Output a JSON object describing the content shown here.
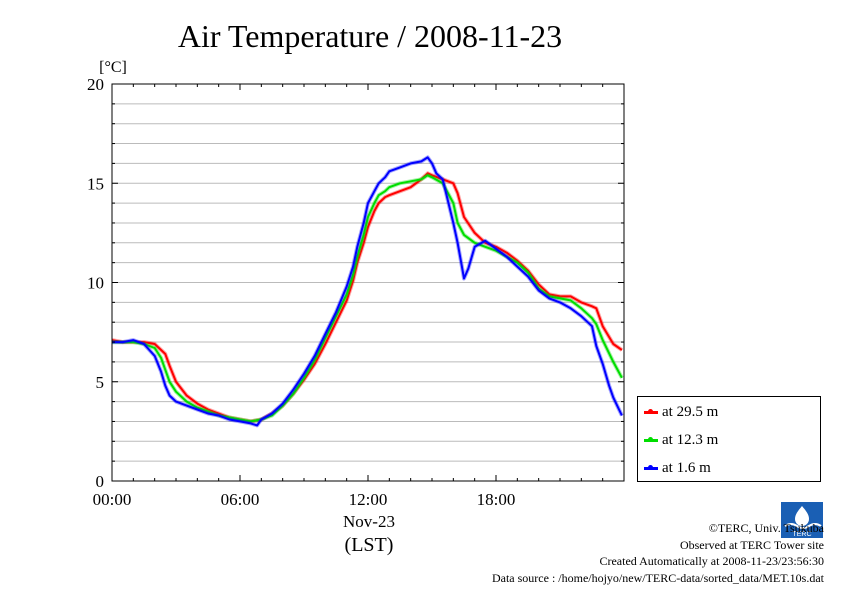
{
  "chart_data": {
    "type": "line",
    "title": "Air Temperature / 2008-11-23",
    "ylabel": "[°C]",
    "xlabel": "(LST)",
    "date_label": "Nov-23",
    "xlim": [
      0,
      24
    ],
    "ylim": [
      0,
      20
    ],
    "x_ticks": [
      {
        "value": 0,
        "label": "00:00"
      },
      {
        "value": 6,
        "label": "06:00"
      },
      {
        "value": 12,
        "label": "12:00"
      },
      {
        "value": 18,
        "label": "18:00"
      }
    ],
    "y_ticks": [
      {
        "value": 0,
        "label": "0"
      },
      {
        "value": 5,
        "label": "5"
      },
      {
        "value": 10,
        "label": "10"
      },
      {
        "value": 15,
        "label": "15"
      },
      {
        "value": 20,
        "label": "20"
      }
    ],
    "grid": true,
    "legend_position": "bottom-right-outside",
    "series": [
      {
        "name": "at 29.5 m",
        "color": "#ff0000",
        "x": [
          0,
          0.5,
          1,
          1.5,
          2,
          2.3,
          2.5,
          2.7,
          3,
          3.5,
          4,
          4.5,
          5,
          5.5,
          6,
          6.5,
          7,
          7.5,
          8,
          8.5,
          9,
          9.5,
          10,
          10.5,
          11,
          11.3,
          11.5,
          11.8,
          12,
          12.3,
          12.5,
          12.8,
          13,
          13.5,
          14,
          14.5,
          14.8,
          15,
          15.5,
          16,
          16.2,
          16.5,
          17,
          17.5,
          18,
          18.5,
          19,
          19.5,
          20,
          20.5,
          21,
          21.5,
          22,
          22.5,
          22.7,
          23,
          23.5,
          23.9
        ],
        "y": [
          7.1,
          7.0,
          7.0,
          7.0,
          6.9,
          6.6,
          6.4,
          5.8,
          5.0,
          4.3,
          3.9,
          3.6,
          3.4,
          3.2,
          3.1,
          3.0,
          3.1,
          3.4,
          3.8,
          4.4,
          5.1,
          5.9,
          6.9,
          8.0,
          9.1,
          10.1,
          11.0,
          12.0,
          12.8,
          13.6,
          14.0,
          14.3,
          14.4,
          14.6,
          14.8,
          15.2,
          15.5,
          15.4,
          15.2,
          15.0,
          14.5,
          13.3,
          12.5,
          12.0,
          11.8,
          11.5,
          11.1,
          10.6,
          9.9,
          9.4,
          9.3,
          9.3,
          9.0,
          8.8,
          8.7,
          7.8,
          6.9,
          6.6
        ]
      },
      {
        "name": "at 12.3 m",
        "color": "#00dd00",
        "x": [
          0,
          0.5,
          1,
          1.5,
          2,
          2.3,
          2.5,
          2.7,
          3,
          3.5,
          4,
          4.5,
          5,
          5.5,
          6,
          6.5,
          7,
          7.5,
          8,
          8.5,
          9,
          9.5,
          10,
          10.5,
          11,
          11.3,
          11.5,
          11.8,
          12,
          12.3,
          12.5,
          12.8,
          13,
          13.5,
          14,
          14.5,
          14.8,
          15,
          15.5,
          16,
          16.2,
          16.5,
          17,
          17.5,
          18,
          18.5,
          19,
          19.5,
          20,
          20.5,
          21,
          21.5,
          22,
          22.5,
          22.7,
          23,
          23.5,
          23.9
        ],
        "y": [
          7.0,
          7.0,
          7.0,
          6.9,
          6.7,
          6.2,
          5.6,
          5.0,
          4.5,
          4.0,
          3.7,
          3.5,
          3.3,
          3.2,
          3.1,
          3.0,
          3.1,
          3.3,
          3.8,
          4.4,
          5.2,
          6.1,
          7.2,
          8.3,
          9.4,
          10.4,
          11.3,
          12.4,
          13.3,
          14.0,
          14.4,
          14.6,
          14.8,
          15.0,
          15.1,
          15.2,
          15.4,
          15.3,
          15.0,
          14.0,
          13.0,
          12.4,
          12.0,
          11.8,
          11.6,
          11.3,
          11.0,
          10.5,
          9.7,
          9.3,
          9.2,
          9.1,
          8.7,
          8.2,
          7.9,
          7.1,
          6.0,
          5.2
        ]
      },
      {
        "name": "at 1.6 m",
        "color": "#0000ff",
        "x": [
          0,
          0.5,
          1,
          1.5,
          2,
          2.3,
          2.5,
          2.7,
          3,
          3.5,
          4,
          4.5,
          5,
          5.5,
          6,
          6.5,
          6.8,
          7,
          7.5,
          8,
          8.5,
          9,
          9.5,
          10,
          10.5,
          11,
          11.3,
          11.5,
          11.8,
          12,
          12.3,
          12.5,
          12.8,
          13,
          13.5,
          14,
          14.5,
          14.8,
          15,
          15.2,
          15.5,
          16,
          16.2,
          16.4,
          16.5,
          16.7,
          17,
          17.5,
          18,
          18.5,
          19,
          19.5,
          20,
          20.5,
          21,
          21.5,
          22,
          22.5,
          22.7,
          23,
          23.3,
          23.5,
          23.9
        ],
        "y": [
          7.0,
          7.0,
          7.1,
          6.9,
          6.3,
          5.5,
          4.8,
          4.3,
          4.0,
          3.8,
          3.6,
          3.4,
          3.3,
          3.1,
          3.0,
          2.9,
          2.8,
          3.1,
          3.4,
          3.9,
          4.6,
          5.4,
          6.3,
          7.4,
          8.5,
          9.8,
          10.8,
          11.8,
          13.0,
          14.0,
          14.6,
          15.0,
          15.3,
          15.6,
          15.8,
          16.0,
          16.1,
          16.3,
          16.0,
          15.5,
          15.2,
          13.0,
          12.0,
          10.8,
          10.2,
          10.7,
          11.8,
          12.1,
          11.7,
          11.3,
          10.8,
          10.3,
          9.6,
          9.2,
          9.0,
          8.7,
          8.3,
          7.8,
          6.8,
          5.9,
          4.8,
          4.2,
          3.3
        ]
      }
    ]
  },
  "credits": {
    "line1": "©TERC, Univ. Tsukuba",
    "line2": "Observed at TERC Tower site",
    "line3": "Created Automatically at 2008-11-23/23:56:30",
    "line4": "Data source : /home/hojyo/new/TERC-data/sorted_data/MET.10s.dat"
  },
  "logo_text": "TERC"
}
